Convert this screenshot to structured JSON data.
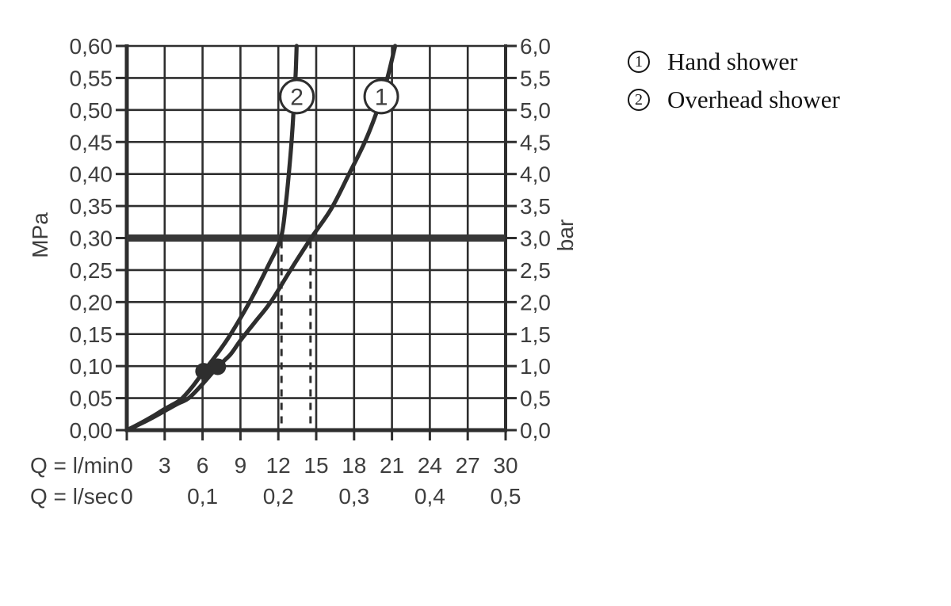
{
  "chart_data": {
    "type": "line",
    "x_axis": {
      "min": 0,
      "max": 30,
      "grid_step": 3,
      "rows": [
        {
          "label": "Q = l/min",
          "ticks": [
            {
              "v": 0,
              "t": "0"
            },
            {
              "v": 3,
              "t": "3"
            },
            {
              "v": 6,
              "t": "6"
            },
            {
              "v": 9,
              "t": "9"
            },
            {
              "v": 12,
              "t": "12"
            },
            {
              "v": 15,
              "t": "15"
            },
            {
              "v": 18,
              "t": "18"
            },
            {
              "v": 21,
              "t": "21"
            },
            {
              "v": 24,
              "t": "24"
            },
            {
              "v": 27,
              "t": "27"
            },
            {
              "v": 30,
              "t": "30"
            }
          ]
        },
        {
          "label": "Q = l/sec",
          "ticks": [
            {
              "v": 0,
              "t": "0"
            },
            {
              "v": 6,
              "t": "0,1"
            },
            {
              "v": 12,
              "t": "0,2"
            },
            {
              "v": 18,
              "t": "0,3"
            },
            {
              "v": 24,
              "t": "0,4"
            },
            {
              "v": 30,
              "t": "0,5"
            }
          ]
        }
      ]
    },
    "y_axis": {
      "min": 0,
      "max": 0.6,
      "grid_step": 0.05,
      "left": {
        "unit": "MPa",
        "ticks": [
          {
            "v": 0.6,
            "t": "0,60"
          },
          {
            "v": 0.55,
            "t": "0,55"
          },
          {
            "v": 0.5,
            "t": "0,50"
          },
          {
            "v": 0.45,
            "t": "0,45"
          },
          {
            "v": 0.4,
            "t": "0,40"
          },
          {
            "v": 0.35,
            "t": "0,35"
          },
          {
            "v": 0.3,
            "t": "0,30"
          },
          {
            "v": 0.25,
            "t": "0,25"
          },
          {
            "v": 0.2,
            "t": "0,20"
          },
          {
            "v": 0.15,
            "t": "0,15"
          },
          {
            "v": 0.1,
            "t": "0,10"
          },
          {
            "v": 0.05,
            "t": "0,05"
          },
          {
            "v": 0.0,
            "t": "0,00"
          }
        ]
      },
      "right": {
        "unit": "bar",
        "ticks": [
          {
            "v": 0.6,
            "t": "6,0"
          },
          {
            "v": 0.55,
            "t": "5,5"
          },
          {
            "v": 0.5,
            "t": "5,0"
          },
          {
            "v": 0.45,
            "t": "4,5"
          },
          {
            "v": 0.4,
            "t": "4,0"
          },
          {
            "v": 0.35,
            "t": "3,5"
          },
          {
            "v": 0.3,
            "t": "3,0"
          },
          {
            "v": 0.25,
            "t": "2,5"
          },
          {
            "v": 0.2,
            "t": "2,0"
          },
          {
            "v": 0.15,
            "t": "1,5"
          },
          {
            "v": 0.1,
            "t": "1,0"
          },
          {
            "v": 0.05,
            "t": "0,5"
          },
          {
            "v": 0.0,
            "t": "0,0"
          }
        ]
      }
    },
    "series": [
      {
        "number": "1",
        "name": "Hand shower",
        "points": [
          [
            0,
            0
          ],
          [
            1,
            0.009
          ],
          [
            2,
            0.019
          ],
          [
            3,
            0.03
          ],
          [
            4,
            0.041
          ],
          [
            4.9,
            0.05
          ],
          [
            6,
            0.072
          ],
          [
            7.2,
            0.099
          ],
          [
            8.2,
            0.118
          ],
          [
            9,
            0.14
          ],
          [
            10.2,
            0.17
          ],
          [
            11.4,
            0.2
          ],
          [
            13,
            0.251
          ],
          [
            14.6,
            0.3
          ],
          [
            16.2,
            0.346
          ],
          [
            17.6,
            0.4
          ],
          [
            18.9,
            0.452
          ],
          [
            19.9,
            0.503
          ],
          [
            20.6,
            0.547
          ],
          [
            21.25,
            0.6
          ]
        ],
        "marker": [
          7.2,
          0.099
        ],
        "label_circle": [
          20.15,
          0.521
        ]
      },
      {
        "number": "2",
        "name": "Overhead shower",
        "points": [
          [
            0,
            0
          ],
          [
            1,
            0.01
          ],
          [
            2,
            0.021
          ],
          [
            3,
            0.033
          ],
          [
            4,
            0.044
          ],
          [
            4.4,
            0.05
          ],
          [
            5.2,
            0.068
          ],
          [
            6.1,
            0.092
          ],
          [
            7,
            0.115
          ],
          [
            8,
            0.143
          ],
          [
            9,
            0.175
          ],
          [
            10,
            0.21
          ],
          [
            11.2,
            0.257
          ],
          [
            12.2,
            0.3
          ],
          [
            12.6,
            0.355
          ],
          [
            12.9,
            0.415
          ],
          [
            13.1,
            0.465
          ],
          [
            13.25,
            0.515
          ],
          [
            13.38,
            0.56
          ],
          [
            13.45,
            0.6
          ]
        ],
        "marker": [
          6.08,
          0.092
        ],
        "label_circle": [
          13.47,
          0.521
        ]
      }
    ],
    "reference_pressure_line": {
      "mpa": 0.3,
      "bar": 3.0
    },
    "dashed_flow_lines_lmin": [
      12.25,
      14.55
    ],
    "grid": true,
    "legend_position": "top-right",
    "colors": {
      "ink": "#2e2e2e",
      "text": "#3e3e3e",
      "reference_line": "#373737",
      "background": "#ffffff",
      "legend_text": "#121212"
    }
  },
  "legend": {
    "items": [
      {
        "number": "1",
        "label": "Hand shower"
      },
      {
        "number": "2",
        "label": "Overhead shower"
      }
    ]
  }
}
